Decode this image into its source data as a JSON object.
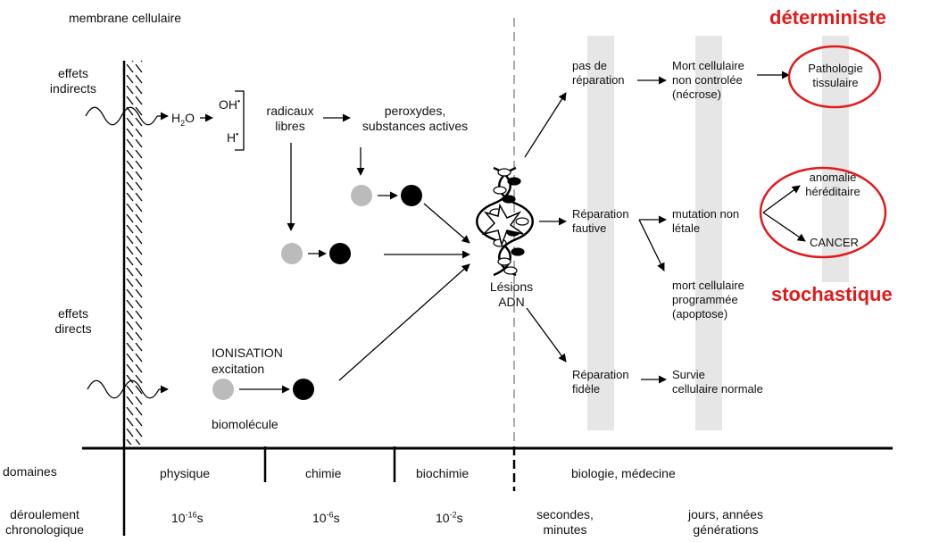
{
  "membrane": "membrane cellulaire",
  "deterministe": "déterministe",
  "stochastique": "stochastique",
  "effets_indirects": [
    "effets",
    "indirects"
  ],
  "effets_directs": [
    "effets",
    "directs"
  ],
  "h2o": {
    "base": "H",
    "sub": "2",
    "rest": "O"
  },
  "oh": {
    "base": "OH",
    "sup": "•"
  },
  "h": {
    "base": "H",
    "sup": "•"
  },
  "radicaux": [
    "radicaux",
    "libres"
  ],
  "peroxydes": [
    "peroxydes,",
    "substances actives"
  ],
  "ionisation": "IONISATION",
  "excitation": "excitation",
  "biomolecule": "biomolécule",
  "lesions": [
    "Lésions",
    "ADN"
  ],
  "pas_reparation": [
    "pas de",
    "réparation"
  ],
  "reparation_fautive": [
    "Réparation",
    "fautive"
  ],
  "reparation_fidele": [
    "Réparation",
    "fidèle"
  ],
  "mort_non_controlee": [
    "Mort cellulaire",
    "non controlée",
    "(nécrose)"
  ],
  "mutation": [
    "mutation non",
    "létale"
  ],
  "mort_programmee": [
    "mort cellulaire",
    "programmée",
    "(apoptose)"
  ],
  "survie": [
    "Survie",
    "cellulaire normale"
  ],
  "pathologie": [
    "Pathologie",
    "tissulaire"
  ],
  "anomalie": [
    "anomalie",
    "héréditaire"
  ],
  "cancer": "CANCER",
  "axis": {
    "row1_label": "domaines",
    "domains": [
      "physique",
      "chimie",
      "biochimie",
      "biologie, médecine"
    ],
    "row2_label": [
      "déroulement",
      "chronologique"
    ],
    "times": [
      {
        "base": "10",
        "exp": "-16",
        "unit": "s"
      },
      {
        "base": "10",
        "exp": "-6",
        "unit": "s"
      },
      {
        "base": "10",
        "exp": "-2",
        "unit": "s"
      }
    ],
    "times_text": [
      [
        "secondes,",
        "minutes"
      ],
      [
        "jours, années",
        "générations"
      ]
    ]
  },
  "colors": {
    "accent_red": "#e11b1b",
    "band_gray": "#e6e6e6",
    "light_dot": "#bbbbbb",
    "dark_dot": "#000000"
  }
}
